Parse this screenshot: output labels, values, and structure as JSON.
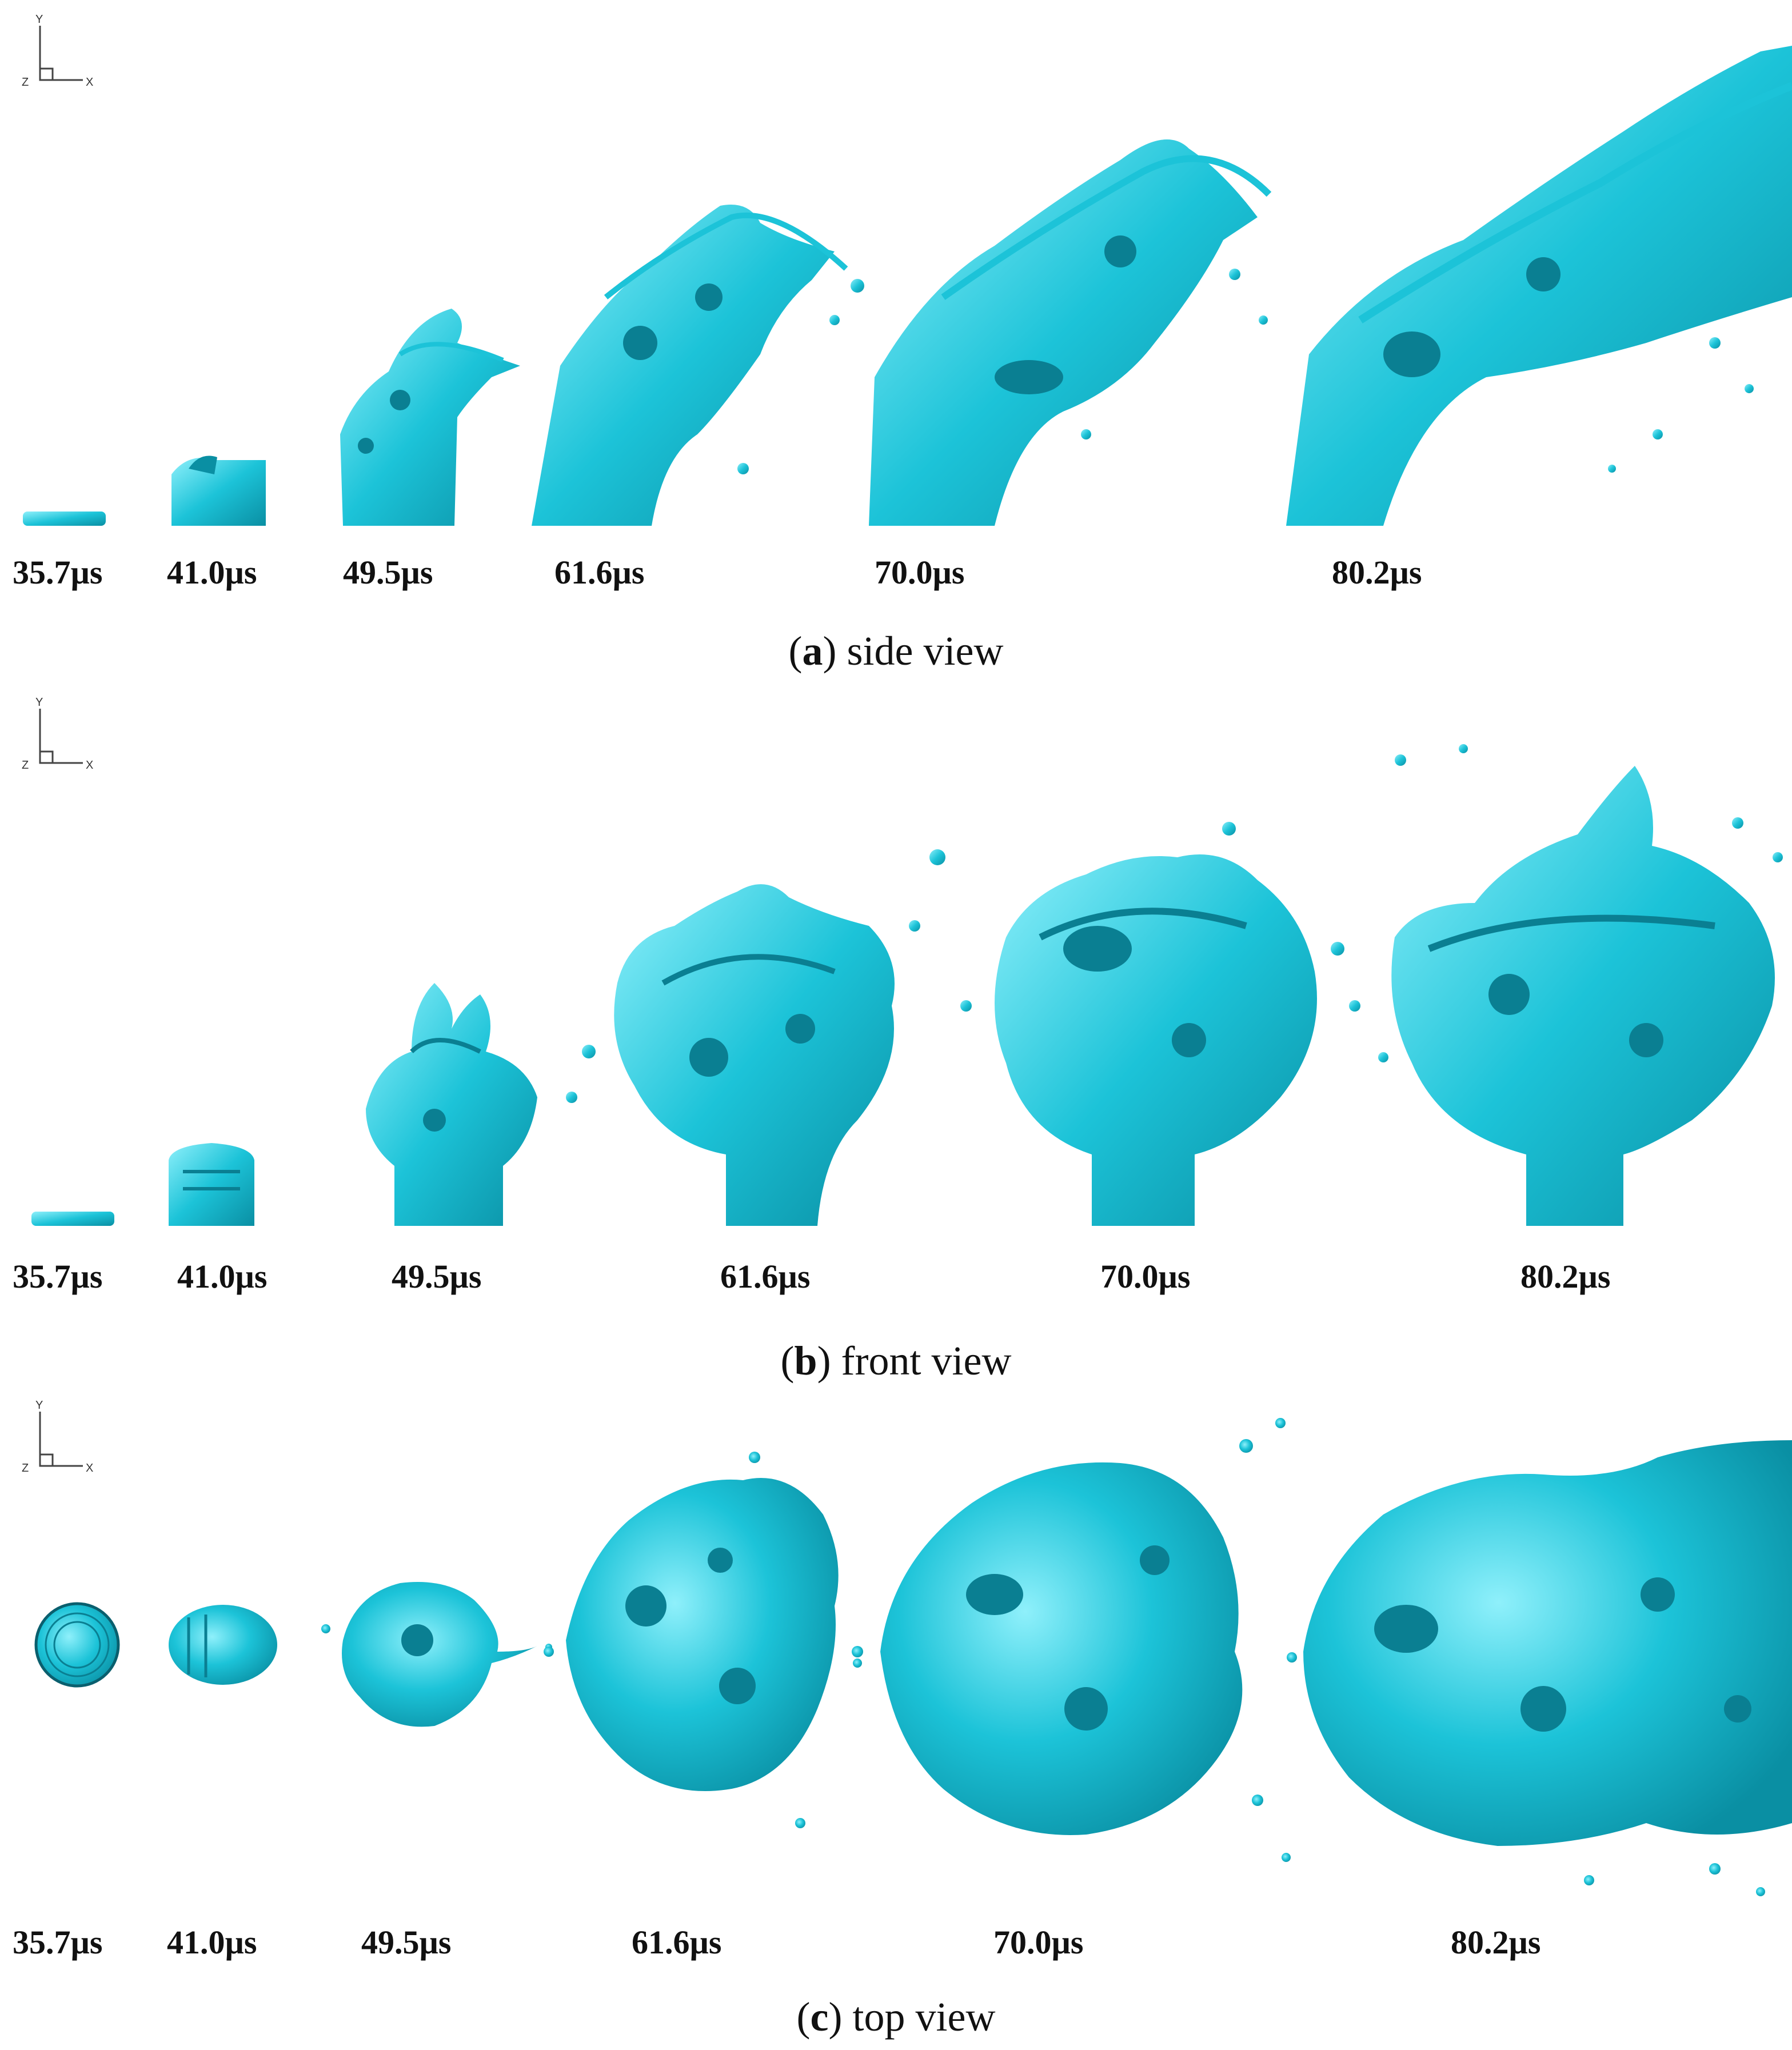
{
  "figure": {
    "colors": {
      "jet": "#1cc3d8",
      "jet_dark": "#0a7f92",
      "jet_light": "#8ff0fb"
    },
    "axis_glyph": {
      "y": "Y",
      "x": "X",
      "z": "Z"
    },
    "panels": [
      {
        "id": "a",
        "letter": "a",
        "caption": "side view",
        "times": [
          "35.7µs",
          "41.0µs",
          "49.5µs",
          "61.6µs",
          "70.0µs",
          "80.2µs"
        ]
      },
      {
        "id": "b",
        "letter": "b",
        "caption": "front view",
        "times": [
          "35.7µs",
          "41.0µs",
          "49.5µs",
          "61.6µs",
          "70.0µs",
          "80.2µs"
        ]
      },
      {
        "id": "c",
        "letter": "c",
        "caption": "top view",
        "times": [
          "35.7µs",
          "41.0µs",
          "49.5µs",
          "61.6µs",
          "70.0µs",
          "80.2µs"
        ]
      }
    ]
  }
}
